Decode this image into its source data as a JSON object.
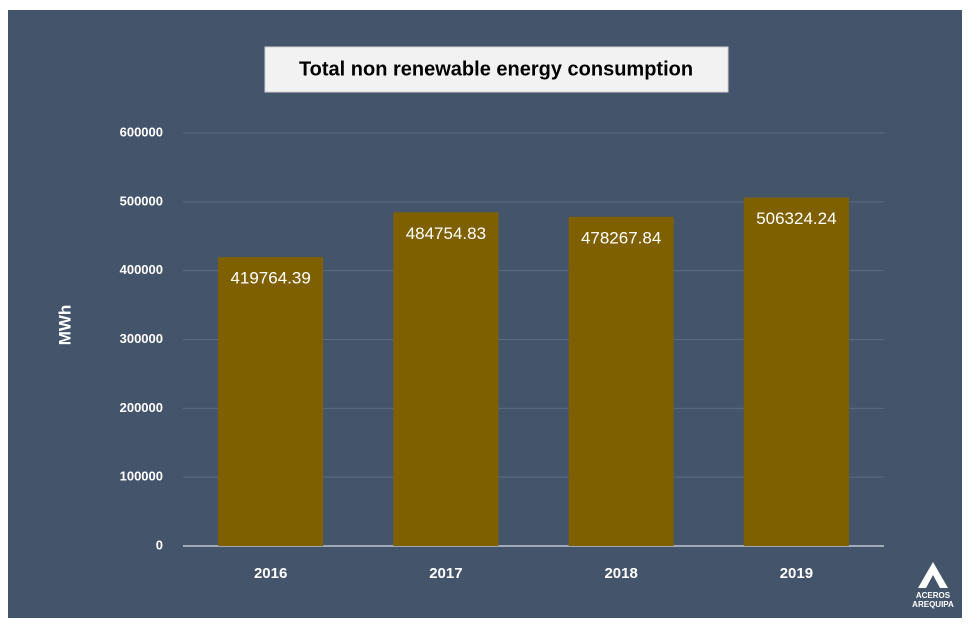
{
  "chart_data": {
    "type": "bar",
    "title": "Total non renewable energy consumption",
    "y_label": "MWh",
    "categories": [
      "2016",
      "2017",
      "2018",
      "2019"
    ],
    "values": [
      419764.39,
      484754.83,
      478267.84,
      506324.24
    ],
    "color": "#7f6000",
    "ylim": [
      0,
      600000
    ],
    "yticks": [
      0,
      100000,
      200000,
      300000,
      400000,
      500000,
      600000
    ],
    "grid": true
  },
  "logo": {
    "lines": [
      "ACEROS",
      "AREQUIPA"
    ]
  }
}
